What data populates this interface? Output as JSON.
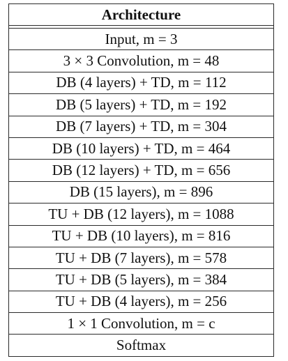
{
  "table": {
    "header": "Architecture",
    "rows": [
      "Input, m = 3",
      "3 × 3 Convolution, m = 48",
      "DB (4 layers) + TD, m = 112",
      "DB (5 layers) + TD, m = 192",
      "DB (7 layers) + TD, m = 304",
      "DB (10 layers) + TD, m = 464",
      "DB (12 layers) + TD, m = 656",
      "DB (15 layers), m = 896",
      "TU + DB (12 layers), m = 1088",
      "TU + DB (10 layers), m = 816",
      "TU + DB (7 layers), m = 578",
      "TU + DB (5 layers), m = 384",
      "TU + DB (4 layers), m = 256",
      "1 × 1 Convolution, m = c",
      "Softmax"
    ]
  }
}
